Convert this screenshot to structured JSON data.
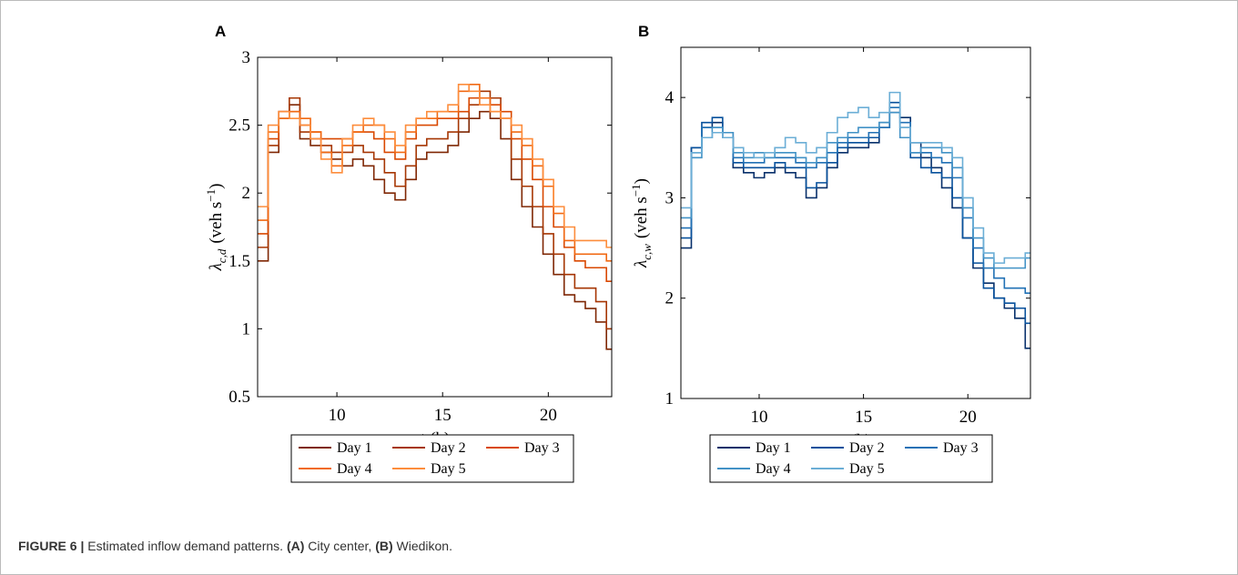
{
  "chart_data": [
    {
      "type": "step",
      "panel": "A",
      "y_label": {
        "symbol": "λ",
        "subscript": "c,d",
        "unit": "(veh s",
        "superscript": "−1",
        "close": ")"
      },
      "x_label": {
        "symbol": "t",
        "unit": "(h)"
      },
      "xlim": [
        6.25,
        23
      ],
      "xticks": [
        10,
        15,
        20
      ],
      "ylim": [
        0.5,
        3
      ],
      "yticks": [
        0.5,
        1,
        1.5,
        2,
        2.5,
        3
      ],
      "x": [
        6.25,
        6.75,
        7.25,
        7.75,
        8.25,
        8.75,
        9.25,
        9.75,
        10.25,
        10.75,
        11.25,
        11.75,
        12.25,
        12.75,
        13.25,
        13.75,
        14.25,
        14.75,
        15.25,
        15.75,
        16.25,
        16.75,
        17.25,
        17.75,
        18.25,
        18.75,
        19.25,
        19.75,
        20.25,
        20.75,
        21.25,
        21.75,
        22.25,
        22.75
      ],
      "series": [
        {
          "name": "Day 1",
          "color": "#7f2704",
          "values": [
            1.5,
            2.3,
            2.55,
            2.65,
            2.4,
            2.35,
            2.3,
            2.25,
            2.2,
            2.25,
            2.2,
            2.1,
            2.0,
            1.95,
            2.1,
            2.25,
            2.3,
            2.3,
            2.35,
            2.45,
            2.55,
            2.6,
            2.55,
            2.4,
            2.1,
            1.9,
            1.75,
            1.55,
            1.4,
            1.25,
            1.2,
            1.15,
            1.05,
            0.85
          ]
        },
        {
          "name": "Day 2",
          "color": "#a63603",
          "values": [
            1.6,
            2.35,
            2.6,
            2.7,
            2.45,
            2.4,
            2.35,
            2.3,
            2.3,
            2.35,
            2.3,
            2.25,
            2.15,
            2.05,
            2.2,
            2.35,
            2.4,
            2.4,
            2.45,
            2.55,
            2.65,
            2.75,
            2.7,
            2.55,
            2.25,
            2.05,
            1.9,
            1.7,
            1.55,
            1.4,
            1.3,
            1.3,
            1.2,
            1.0
          ]
        },
        {
          "name": "Day 3",
          "color": "#d94801",
          "values": [
            1.7,
            2.4,
            2.6,
            2.6,
            2.5,
            2.45,
            2.4,
            2.4,
            2.4,
            2.45,
            2.45,
            2.4,
            2.3,
            2.25,
            2.4,
            2.5,
            2.5,
            2.55,
            2.55,
            2.6,
            2.7,
            2.7,
            2.65,
            2.6,
            2.4,
            2.25,
            2.1,
            1.9,
            1.75,
            1.6,
            1.5,
            1.45,
            1.45,
            1.35
          ]
        },
        {
          "name": "Day 4",
          "color": "#f16913",
          "values": [
            1.8,
            2.45,
            2.55,
            2.6,
            2.55,
            2.45,
            2.3,
            2.2,
            2.35,
            2.45,
            2.5,
            2.5,
            2.4,
            2.3,
            2.45,
            2.55,
            2.55,
            2.6,
            2.6,
            2.75,
            2.8,
            2.7,
            2.6,
            2.55,
            2.45,
            2.35,
            2.2,
            2.05,
            1.85,
            1.65,
            1.55,
            1.55,
            1.55,
            1.5
          ]
        },
        {
          "name": "Day 5",
          "color": "#fd8d3c",
          "values": [
            1.9,
            2.5,
            2.6,
            2.55,
            2.5,
            2.4,
            2.25,
            2.15,
            2.4,
            2.5,
            2.55,
            2.5,
            2.45,
            2.35,
            2.5,
            2.55,
            2.6,
            2.6,
            2.65,
            2.8,
            2.75,
            2.65,
            2.6,
            2.55,
            2.5,
            2.4,
            2.25,
            2.1,
            1.9,
            1.75,
            1.65,
            1.65,
            1.65,
            1.6
          ]
        }
      ]
    },
    {
      "type": "step",
      "panel": "B",
      "y_label": {
        "symbol": "λ",
        "subscript": "c,w",
        "unit": "(veh s",
        "superscript": "−1",
        "close": ")"
      },
      "x_label": {
        "symbol": "t",
        "unit": "(h)"
      },
      "xlim": [
        6.25,
        23
      ],
      "xticks": [
        10,
        15,
        20
      ],
      "ylim": [
        1,
        4.5
      ],
      "yticks": [
        1,
        2,
        3,
        4
      ],
      "x": [
        6.25,
        6.75,
        7.25,
        7.75,
        8.25,
        8.75,
        9.25,
        9.75,
        10.25,
        10.75,
        11.25,
        11.75,
        12.25,
        12.75,
        13.25,
        13.75,
        14.25,
        14.75,
        15.25,
        15.75,
        16.25,
        16.75,
        17.25,
        17.75,
        18.25,
        18.75,
        19.25,
        19.75,
        20.25,
        20.75,
        21.25,
        21.75,
        22.25,
        22.75
      ],
      "series": [
        {
          "name": "Day 1",
          "color": "#08306b",
          "values": [
            2.5,
            3.5,
            3.7,
            3.75,
            3.6,
            3.3,
            3.25,
            3.2,
            3.25,
            3.3,
            3.25,
            3.2,
            3.0,
            3.1,
            3.3,
            3.45,
            3.5,
            3.5,
            3.55,
            3.7,
            3.85,
            3.8,
            3.55,
            3.4,
            3.3,
            3.1,
            2.9,
            2.6,
            2.3,
            2.15,
            2.0,
            1.9,
            1.8,
            1.5
          ]
        },
        {
          "name": "Day 2",
          "color": "#08519c",
          "values": [
            2.6,
            3.5,
            3.75,
            3.8,
            3.65,
            3.35,
            3.3,
            3.3,
            3.3,
            3.35,
            3.3,
            3.3,
            3.1,
            3.15,
            3.35,
            3.5,
            3.55,
            3.55,
            3.6,
            3.75,
            3.95,
            3.7,
            3.4,
            3.3,
            3.25,
            3.2,
            3.0,
            2.6,
            2.35,
            2.1,
            2.0,
            1.95,
            1.9,
            1.75
          ]
        },
        {
          "name": "Day 3",
          "color": "#2171b5",
          "values": [
            2.7,
            3.45,
            3.7,
            3.7,
            3.6,
            3.4,
            3.35,
            3.35,
            3.4,
            3.4,
            3.4,
            3.35,
            3.3,
            3.35,
            3.45,
            3.55,
            3.6,
            3.6,
            3.65,
            3.7,
            3.9,
            3.75,
            3.45,
            3.45,
            3.4,
            3.35,
            3.2,
            2.8,
            2.5,
            2.3,
            2.2,
            2.1,
            2.1,
            2.05
          ]
        },
        {
          "name": "Day 4",
          "color": "#4292c6",
          "values": [
            2.8,
            3.4,
            3.6,
            3.7,
            3.65,
            3.45,
            3.4,
            3.45,
            3.4,
            3.45,
            3.45,
            3.4,
            3.35,
            3.4,
            3.55,
            3.6,
            3.65,
            3.7,
            3.7,
            3.75,
            3.85,
            3.6,
            3.45,
            3.5,
            3.5,
            3.45,
            3.3,
            2.9,
            2.6,
            2.4,
            2.3,
            2.3,
            2.3,
            2.4
          ]
        },
        {
          "name": "Day 5",
          "color": "#6baed6",
          "values": [
            2.9,
            3.45,
            3.6,
            3.65,
            3.6,
            3.5,
            3.45,
            3.4,
            3.45,
            3.5,
            3.6,
            3.55,
            3.45,
            3.5,
            3.65,
            3.8,
            3.85,
            3.9,
            3.8,
            3.85,
            4.05,
            3.7,
            3.55,
            3.55,
            3.55,
            3.5,
            3.4,
            3.0,
            2.7,
            2.45,
            2.35,
            2.4,
            2.4,
            2.45
          ]
        }
      ]
    }
  ],
  "caption": {
    "label": "FIGURE 6 |",
    "text1": " Estimated inflow demand patterns. ",
    "ref_a": "(A)",
    "text2": " City center, ",
    "ref_b": "(B)",
    "text3": " Wiedikon."
  }
}
